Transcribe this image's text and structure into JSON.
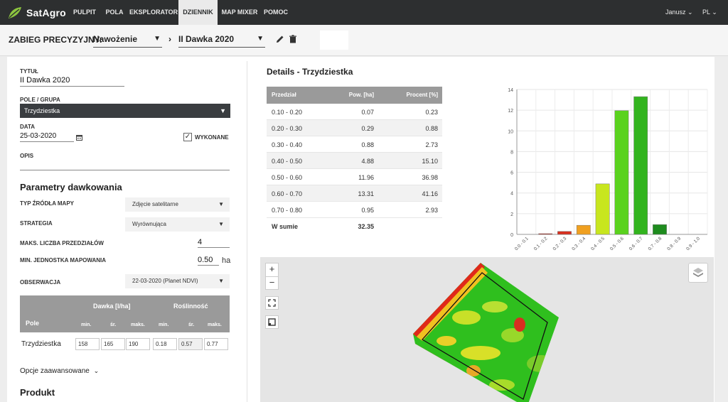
{
  "app": {
    "logo_text": "SatAgro"
  },
  "nav": {
    "items": [
      {
        "label": "PULPIT"
      },
      {
        "label": "POLA"
      },
      {
        "label": "EKSPLORATOR"
      },
      {
        "label": "DZIENNIK",
        "active": true
      },
      {
        "label": "MAP MIXER"
      },
      {
        "label": "POMOC"
      }
    ],
    "user": "Janusz",
    "lang": "PL"
  },
  "toolbar": {
    "label": "ZABIEG PRECYZYJNY:",
    "operation": "Nawożenie",
    "treatment": "II Dawka 2020",
    "edit_icon": "pencil-icon",
    "delete_icon": "trash-icon"
  },
  "form": {
    "title_label": "TYTUŁ",
    "title_value": "II Dawka 2020",
    "field_label": "POLE / GRUPA",
    "field_value": "Trzydziestka",
    "date_label": "DATA",
    "date_value": "25-03-2020",
    "done_label": "WYKONANE",
    "done_checked": true,
    "desc_label": "OPIS",
    "desc_value": ""
  },
  "params": {
    "title": "Parametry dawkowania",
    "map_source_label": "TYP ŹRÓDŁA MAPY",
    "map_source_value": "Zdjęcie satelitarne",
    "strategy_label": "STRATEGIA",
    "strategy_value": "Wyrównująca",
    "max_intervals_label": "MAKS. LICZBA PRZEDZIAŁÓW",
    "max_intervals_value": "4",
    "min_unit_label": "MIN. JEDNOSTKA MAPOWANIA",
    "min_unit_value": "0.50",
    "min_unit_suffix": "ha",
    "observation_label": "OBSERWACJA",
    "observation_value": "22-03-2020 (Planet NDVI)"
  },
  "dose_table": {
    "dose_header": "Dawka [l/ha]",
    "veg_header": "Roślinność",
    "field_header": "Pole",
    "sub_min": "min.",
    "sub_avg": "śr.",
    "sub_max": "maks.",
    "row_name": "Trzydziestka",
    "dose_min": "158",
    "dose_avg": "165",
    "dose_max": "190",
    "veg_min": "0.18",
    "veg_avg": "0.57",
    "veg_max": "0.77"
  },
  "advanced_label": "Opcje zaawansowane",
  "product_title": "Produkt",
  "details": {
    "title": "Details - Trzydziestka",
    "col_interval": "Przedział",
    "col_area": "Pow. [ha]",
    "col_percent": "Procent [%]",
    "rows": [
      {
        "interval": "0.10 - 0.20",
        "area": "0.07",
        "percent": "0.23"
      },
      {
        "interval": "0.20 - 0.30",
        "area": "0.29",
        "percent": "0.88"
      },
      {
        "interval": "0.30 - 0.40",
        "area": "0.88",
        "percent": "2.73"
      },
      {
        "interval": "0.40 - 0.50",
        "area": "4.88",
        "percent": "15.10"
      },
      {
        "interval": "0.50 - 0.60",
        "area": "11.96",
        "percent": "36.98"
      },
      {
        "interval": "0.60 - 0.70",
        "area": "13.31",
        "percent": "41.16"
      },
      {
        "interval": "0.70 - 0.80",
        "area": "0.95",
        "percent": "2.93"
      }
    ],
    "sum_label": "W sumie",
    "sum_area": "32.35"
  },
  "chart_data": {
    "type": "bar",
    "categories": [
      "0.0 - 0.1",
      "0.1 - 0.2",
      "0.2 - 0.3",
      "0.3 - 0.4",
      "0.4 - 0.5",
      "0.5 - 0.6",
      "0.6 - 0.7",
      "0.7 - 0.8",
      "0.8 - 0.9",
      "0.9 - 1.0"
    ],
    "values": [
      0,
      0.07,
      0.29,
      0.88,
      4.88,
      11.96,
      13.31,
      0.95,
      0,
      0
    ],
    "colors": [
      "#b40000",
      "#c81e0e",
      "#d7301f",
      "#f0a020",
      "#c8e61e",
      "#5ad21e",
      "#32b41e",
      "#1e8c1e",
      "#1e8c1e",
      "#1e8c1e"
    ],
    "yticks": [
      0,
      2,
      4,
      6,
      8,
      10,
      12,
      14
    ],
    "ylim": [
      0,
      14
    ],
    "title": "",
    "xlabel": "",
    "ylabel": ""
  },
  "map": {
    "zoom_in": "+",
    "zoom_out": "−",
    "fullscreen_icon": "fullscreen-icon",
    "draw_icon": "draw-square-icon",
    "layers_icon": "layers-icon"
  }
}
